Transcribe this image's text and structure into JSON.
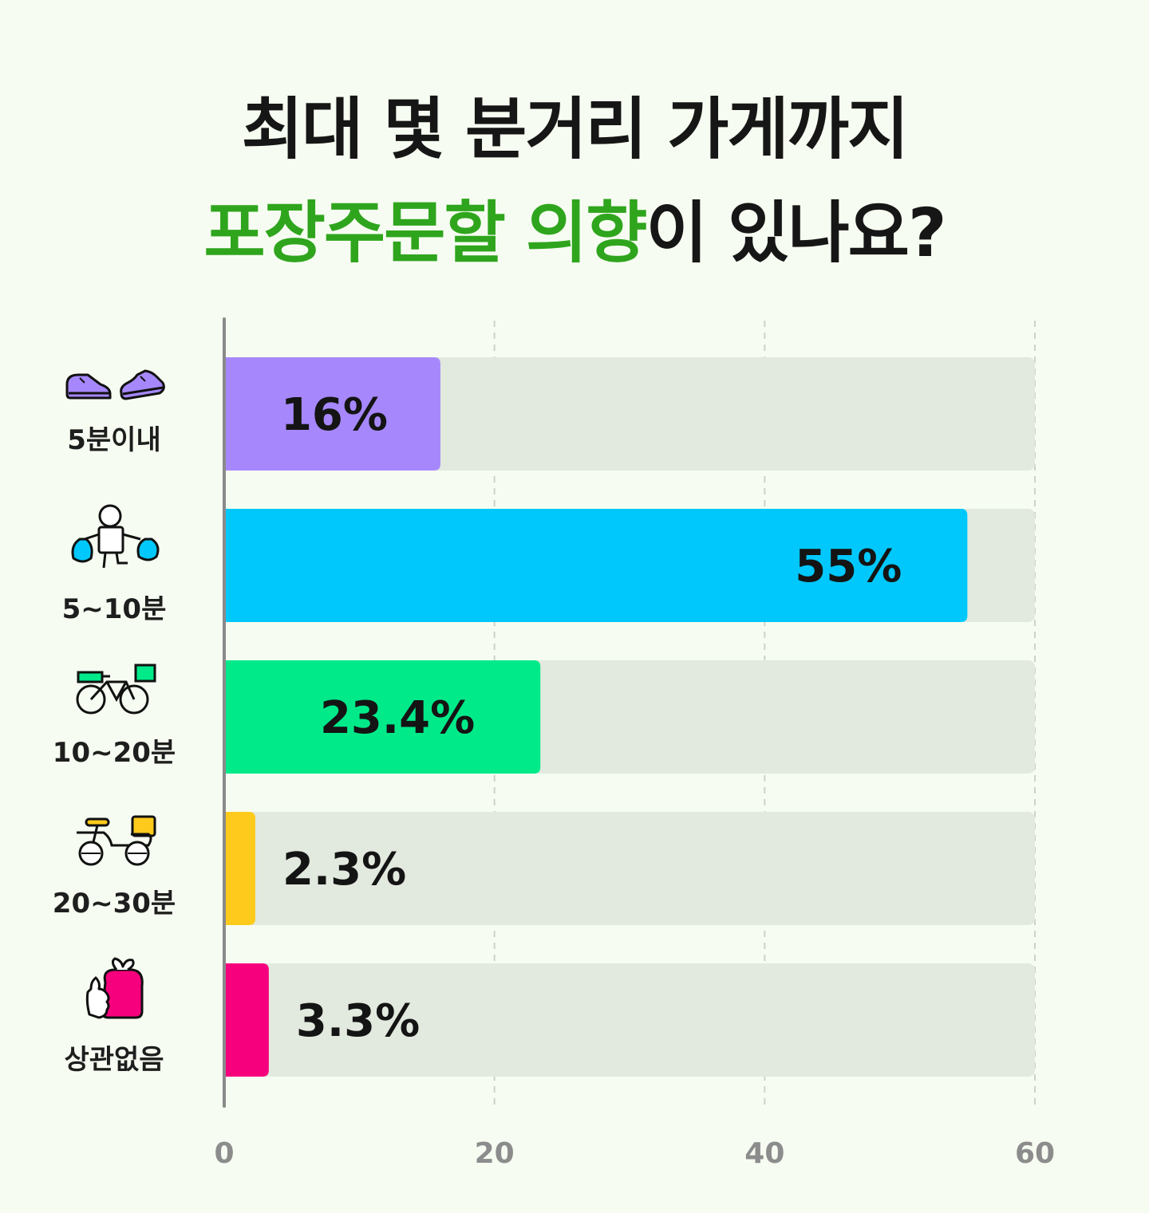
{
  "title": {
    "line1": "최대 몇 분거리 가게까지",
    "line2_highlight": "포장주문할 의향",
    "line2_rest": "이 있나요?",
    "highlight_color": "#2fa51d"
  },
  "chart_data": {
    "type": "bar",
    "orientation": "horizontal",
    "categories": [
      "5분이내",
      "5~10분",
      "10~20분",
      "20~30분",
      "상관없음"
    ],
    "values": [
      16,
      55,
      23.4,
      2.3,
      3.3
    ],
    "value_labels": [
      "16%",
      "55%",
      "23.4%",
      "2.3%",
      "3.3%"
    ],
    "icons": [
      "sneakers-icon",
      "walking-person-bags-icon",
      "bicycle-icon",
      "motorbike-icon",
      "thumbs-up-bag-icon"
    ],
    "colors": [
      "#a688fc",
      "#00c8fc",
      "#00ea8a",
      "#fecb1c",
      "#f7007d"
    ],
    "track_color": "#e2e9de",
    "xlim": [
      0,
      60
    ],
    "xticks": [
      "0",
      "20",
      "40",
      "60"
    ],
    "grid": "dashed vertical"
  }
}
